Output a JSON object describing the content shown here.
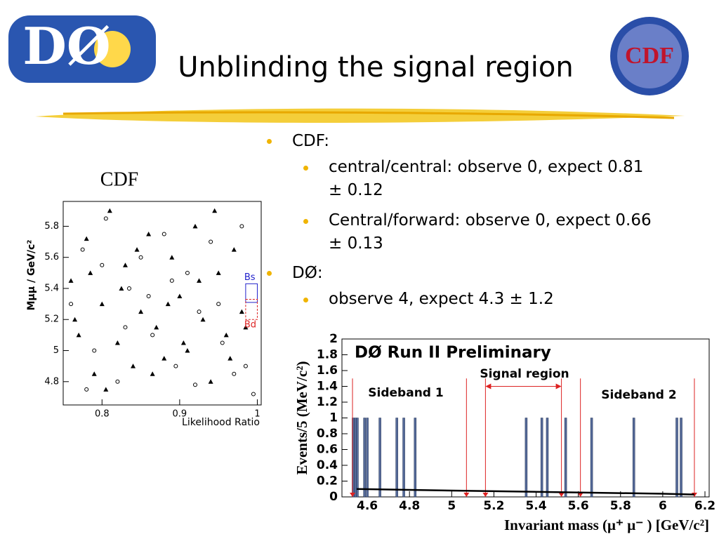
{
  "title": "Unblinding the signal region",
  "logos": {
    "left": "DØ",
    "right": "CDF"
  },
  "bullets": [
    {
      "text": "CDF:",
      "sub": [
        "central/central: observe 0, expect 0.81 ± 0.12",
        "Central/forward: observe 0, expect 0.66 ± 0.13"
      ]
    },
    {
      "text": "DØ:",
      "sub": [
        "observe 4, expect 4.3 ± 1.2"
      ]
    }
  ],
  "chart_data": [
    {
      "type": "scatter",
      "title": "CDF",
      "xlabel": "Likelihood Ratio",
      "ylabel": "Mμμ / GeV/c²",
      "xlim": [
        0.75,
        1.005
      ],
      "ylim": [
        4.65,
        5.96
      ],
      "xticks": [
        0.8,
        0.9,
        1
      ],
      "yticks": [
        4.8,
        5,
        5.2,
        5.4,
        5.6,
        5.8
      ],
      "series": [
        {
          "marker": "triangle",
          "color": "#000000",
          "x": [
            0.76,
            0.77,
            0.78,
            0.79,
            0.8,
            0.81,
            0.82,
            0.83,
            0.84,
            0.85,
            0.86,
            0.87,
            0.88,
            0.89,
            0.9,
            0.91,
            0.92,
            0.93,
            0.94,
            0.95,
            0.96,
            0.97,
            0.98,
            0.765,
            0.785,
            0.805,
            0.825,
            0.845,
            0.865,
            0.885,
            0.905,
            0.925,
            0.945,
            0.965,
            0.985
          ],
          "values": [
            5.45,
            5.1,
            5.72,
            4.85,
            5.3,
            5.9,
            5.05,
            5.55,
            4.9,
            5.25,
            5.75,
            5.15,
            4.95,
            5.6,
            5.35,
            5.0,
            5.8,
            5.2,
            4.8,
            5.5,
            5.1,
            5.65,
            5.25,
            5.2,
            5.5,
            4.75,
            5.4,
            5.65,
            4.85,
            5.3,
            5.05,
            5.45,
            5.9,
            4.95,
            5.15
          ]
        },
        {
          "marker": "circle",
          "color": "#000000",
          "x": [
            0.76,
            0.775,
            0.79,
            0.805,
            0.82,
            0.835,
            0.85,
            0.865,
            0.88,
            0.895,
            0.91,
            0.925,
            0.94,
            0.955,
            0.97,
            0.985,
            0.995,
            0.78,
            0.8,
            0.83,
            0.86,
            0.89,
            0.92,
            0.95,
            0.98
          ],
          "values": [
            5.3,
            5.65,
            5.0,
            5.85,
            4.8,
            5.4,
            5.6,
            5.1,
            5.75,
            4.9,
            5.5,
            5.25,
            5.7,
            5.05,
            4.85,
            4.9,
            4.72,
            4.75,
            5.55,
            5.15,
            5.35,
            5.45,
            4.78,
            5.3,
            5.8
          ]
        }
      ],
      "regions": [
        {
          "label": "Bs",
          "color": "#2222cc",
          "x": [
            0.985,
            1.0
          ],
          "y": [
            5.31,
            5.43
          ]
        },
        {
          "label": "Bd",
          "color": "#dd2222",
          "x": [
            0.985,
            1.0
          ],
          "y": [
            5.2,
            5.33
          ]
        }
      ]
    },
    {
      "type": "bar",
      "title": "DØ Run II Preliminary",
      "xlabel": "Invariant mass (μ⁺ μ⁻ ) [GeV/c²]",
      "ylabel": "Events/5 (MeV/c²)",
      "xlim": [
        4.48,
        6.22
      ],
      "ylim": [
        0,
        2
      ],
      "xticks": [
        4.6,
        4.8,
        5,
        5.2,
        5.4,
        5.6,
        5.8,
        6,
        6.2
      ],
      "yticks": [
        0,
        0.2,
        0.4,
        0.6,
        0.8,
        1,
        1.2,
        1.4,
        1.6,
        1.8,
        2
      ],
      "color": "#556a99",
      "x": [
        4.533,
        4.543,
        4.553,
        4.587,
        4.6,
        4.66,
        4.74,
        4.773,
        4.827,
        5.353,
        5.427,
        5.453,
        5.54,
        5.663,
        5.863,
        6.067,
        6.087
      ],
      "values": [
        1,
        1,
        1,
        1,
        1,
        1,
        1,
        1,
        1,
        1,
        1,
        1,
        1,
        1,
        1,
        1,
        1
      ],
      "background": {
        "color": "#000000",
        "x": [
          4.55,
          5.0,
          5.5,
          6.0,
          6.15
        ],
        "values": [
          0.1,
          0.08,
          0.06,
          0.04,
          0.03
        ]
      },
      "cut_lines": {
        "color": "#dd2222",
        "x": [
          4.53,
          5.07,
          5.16,
          5.52,
          5.61,
          6.15
        ]
      },
      "annotations": [
        "Sideband 1",
        "Signal region",
        "Sideband 2"
      ]
    }
  ]
}
